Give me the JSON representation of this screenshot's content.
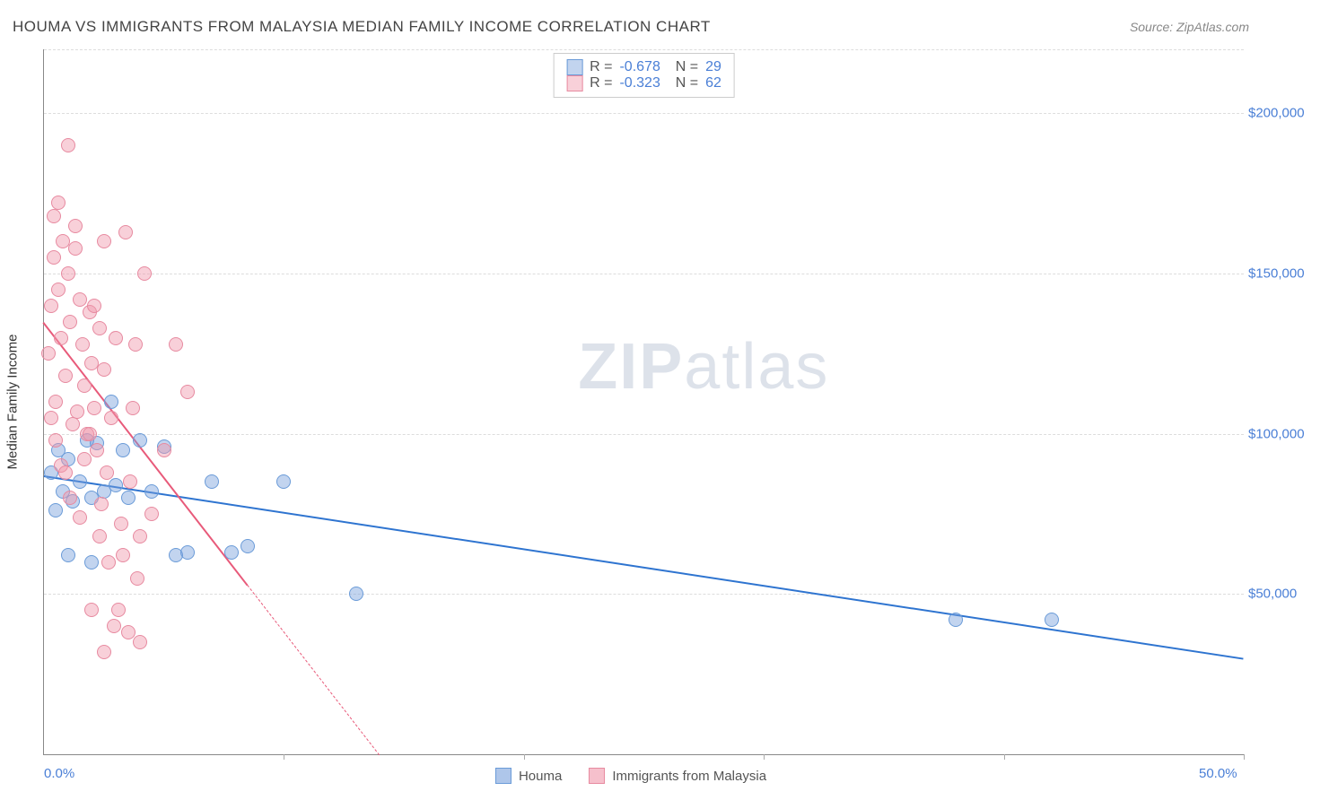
{
  "header": {
    "title": "HOUMA VS IMMIGRANTS FROM MALAYSIA MEDIAN FAMILY INCOME CORRELATION CHART",
    "source": "Source: ZipAtlas.com"
  },
  "watermark": {
    "zip": "ZIP",
    "atlas": "atlas"
  },
  "chart": {
    "type": "scatter",
    "background_color": "#ffffff",
    "grid_color": "#dddddd",
    "axis_color": "#888888",
    "x_axis": {
      "min": 0,
      "max": 50,
      "ticks": [
        0,
        10,
        20,
        30,
        40,
        50
      ],
      "label_min": "0.0%",
      "label_max": "50.0%"
    },
    "y_axis": {
      "min": 0,
      "max": 220000,
      "title": "Median Family Income",
      "grid_lines": [
        50000,
        100000,
        150000,
        200000
      ],
      "labels": [
        "$50,000",
        "$100,000",
        "$150,000",
        "$200,000"
      ]
    },
    "label_color": "#4a7fd6",
    "axis_title_color": "#333333",
    "label_fontsize": 15,
    "marker_radius": 8,
    "marker_stroke_width": 1,
    "series": [
      {
        "name": "Houma",
        "color_fill": "rgba(120,160,220,0.45)",
        "color_stroke": "#6a9bd8",
        "regression": {
          "x1": 0,
          "y1": 87000,
          "x2": 50,
          "y2": 30000,
          "color": "#2e74d0",
          "width": 2,
          "solid_until_x": 50
        },
        "stats": {
          "R": "-0.678",
          "N": "29"
        },
        "points": [
          [
            0.3,
            88000
          ],
          [
            0.6,
            95000
          ],
          [
            0.8,
            82000
          ],
          [
            1.0,
            92000
          ],
          [
            1.2,
            79000
          ],
          [
            1.5,
            85000
          ],
          [
            1.8,
            98000
          ],
          [
            2.0,
            80000
          ],
          [
            2.2,
            97000
          ],
          [
            2.5,
            82000
          ],
          [
            2.8,
            110000
          ],
          [
            3.0,
            84000
          ],
          [
            3.3,
            95000
          ],
          [
            3.5,
            80000
          ],
          [
            4.0,
            98000
          ],
          [
            4.5,
            82000
          ],
          [
            5.0,
            96000
          ],
          [
            5.5,
            62000
          ],
          [
            6.0,
            63000
          ],
          [
            7.0,
            85000
          ],
          [
            7.8,
            63000
          ],
          [
            8.5,
            65000
          ],
          [
            10.0,
            85000
          ],
          [
            13.0,
            50000
          ],
          [
            38.0,
            42000
          ],
          [
            42.0,
            42000
          ],
          [
            1.0,
            62000
          ],
          [
            2.0,
            60000
          ],
          [
            0.5,
            76000
          ]
        ]
      },
      {
        "name": "Immigrants from Malaysia",
        "color_fill": "rgba(240,150,170,0.45)",
        "color_stroke": "#e78aa0",
        "regression": {
          "x1": 0,
          "y1": 135000,
          "x2": 14,
          "y2": 0,
          "color": "#e85a7a",
          "width": 2,
          "solid_until_x": 8.5
        },
        "stats": {
          "R": "-0.323",
          "N": "62"
        },
        "points": [
          [
            0.2,
            125000
          ],
          [
            0.3,
            140000
          ],
          [
            0.4,
            155000
          ],
          [
            0.5,
            110000
          ],
          [
            0.6,
            145000
          ],
          [
            0.7,
            130000
          ],
          [
            0.8,
            160000
          ],
          [
            0.9,
            118000
          ],
          [
            1.0,
            150000
          ],
          [
            1.1,
            135000
          ],
          [
            1.2,
            103000
          ],
          [
            1.3,
            165000
          ],
          [
            1.4,
            107000
          ],
          [
            1.5,
            142000
          ],
          [
            1.6,
            128000
          ],
          [
            1.7,
            115000
          ],
          [
            1.8,
            100000
          ],
          [
            1.9,
            138000
          ],
          [
            2.0,
            122000
          ],
          [
            2.1,
            108000
          ],
          [
            2.2,
            95000
          ],
          [
            2.3,
            133000
          ],
          [
            2.4,
            78000
          ],
          [
            2.5,
            160000
          ],
          [
            2.6,
            88000
          ],
          [
            2.8,
            105000
          ],
          [
            3.0,
            130000
          ],
          [
            3.2,
            72000
          ],
          [
            3.4,
            163000
          ],
          [
            3.6,
            85000
          ],
          [
            3.8,
            128000
          ],
          [
            4.0,
            68000
          ],
          [
            4.2,
            150000
          ],
          [
            4.5,
            75000
          ],
          [
            5.0,
            95000
          ],
          [
            5.5,
            128000
          ],
          [
            6.0,
            113000
          ],
          [
            0.3,
            105000
          ],
          [
            0.5,
            98000
          ],
          [
            0.7,
            90000
          ],
          [
            0.9,
            88000
          ],
          [
            1.1,
            80000
          ],
          [
            1.3,
            158000
          ],
          [
            1.5,
            74000
          ],
          [
            1.7,
            92000
          ],
          [
            1.9,
            100000
          ],
          [
            2.1,
            140000
          ],
          [
            2.3,
            68000
          ],
          [
            2.5,
            120000
          ],
          [
            2.7,
            60000
          ],
          [
            2.9,
            40000
          ],
          [
            3.1,
            45000
          ],
          [
            3.3,
            62000
          ],
          [
            3.5,
            38000
          ],
          [
            3.7,
            108000
          ],
          [
            3.9,
            55000
          ],
          [
            1.0,
            190000
          ],
          [
            0.4,
            168000
          ],
          [
            0.6,
            172000
          ],
          [
            2.0,
            45000
          ],
          [
            2.5,
            32000
          ],
          [
            4.0,
            35000
          ]
        ]
      }
    ]
  },
  "legend_bottom": {
    "items": [
      {
        "label": "Houma",
        "fill": "rgba(120,160,220,0.6)",
        "stroke": "#6a9bd8"
      },
      {
        "label": "Immigrants from Malaysia",
        "fill": "rgba(240,150,170,0.6)",
        "stroke": "#e78aa0"
      }
    ]
  }
}
